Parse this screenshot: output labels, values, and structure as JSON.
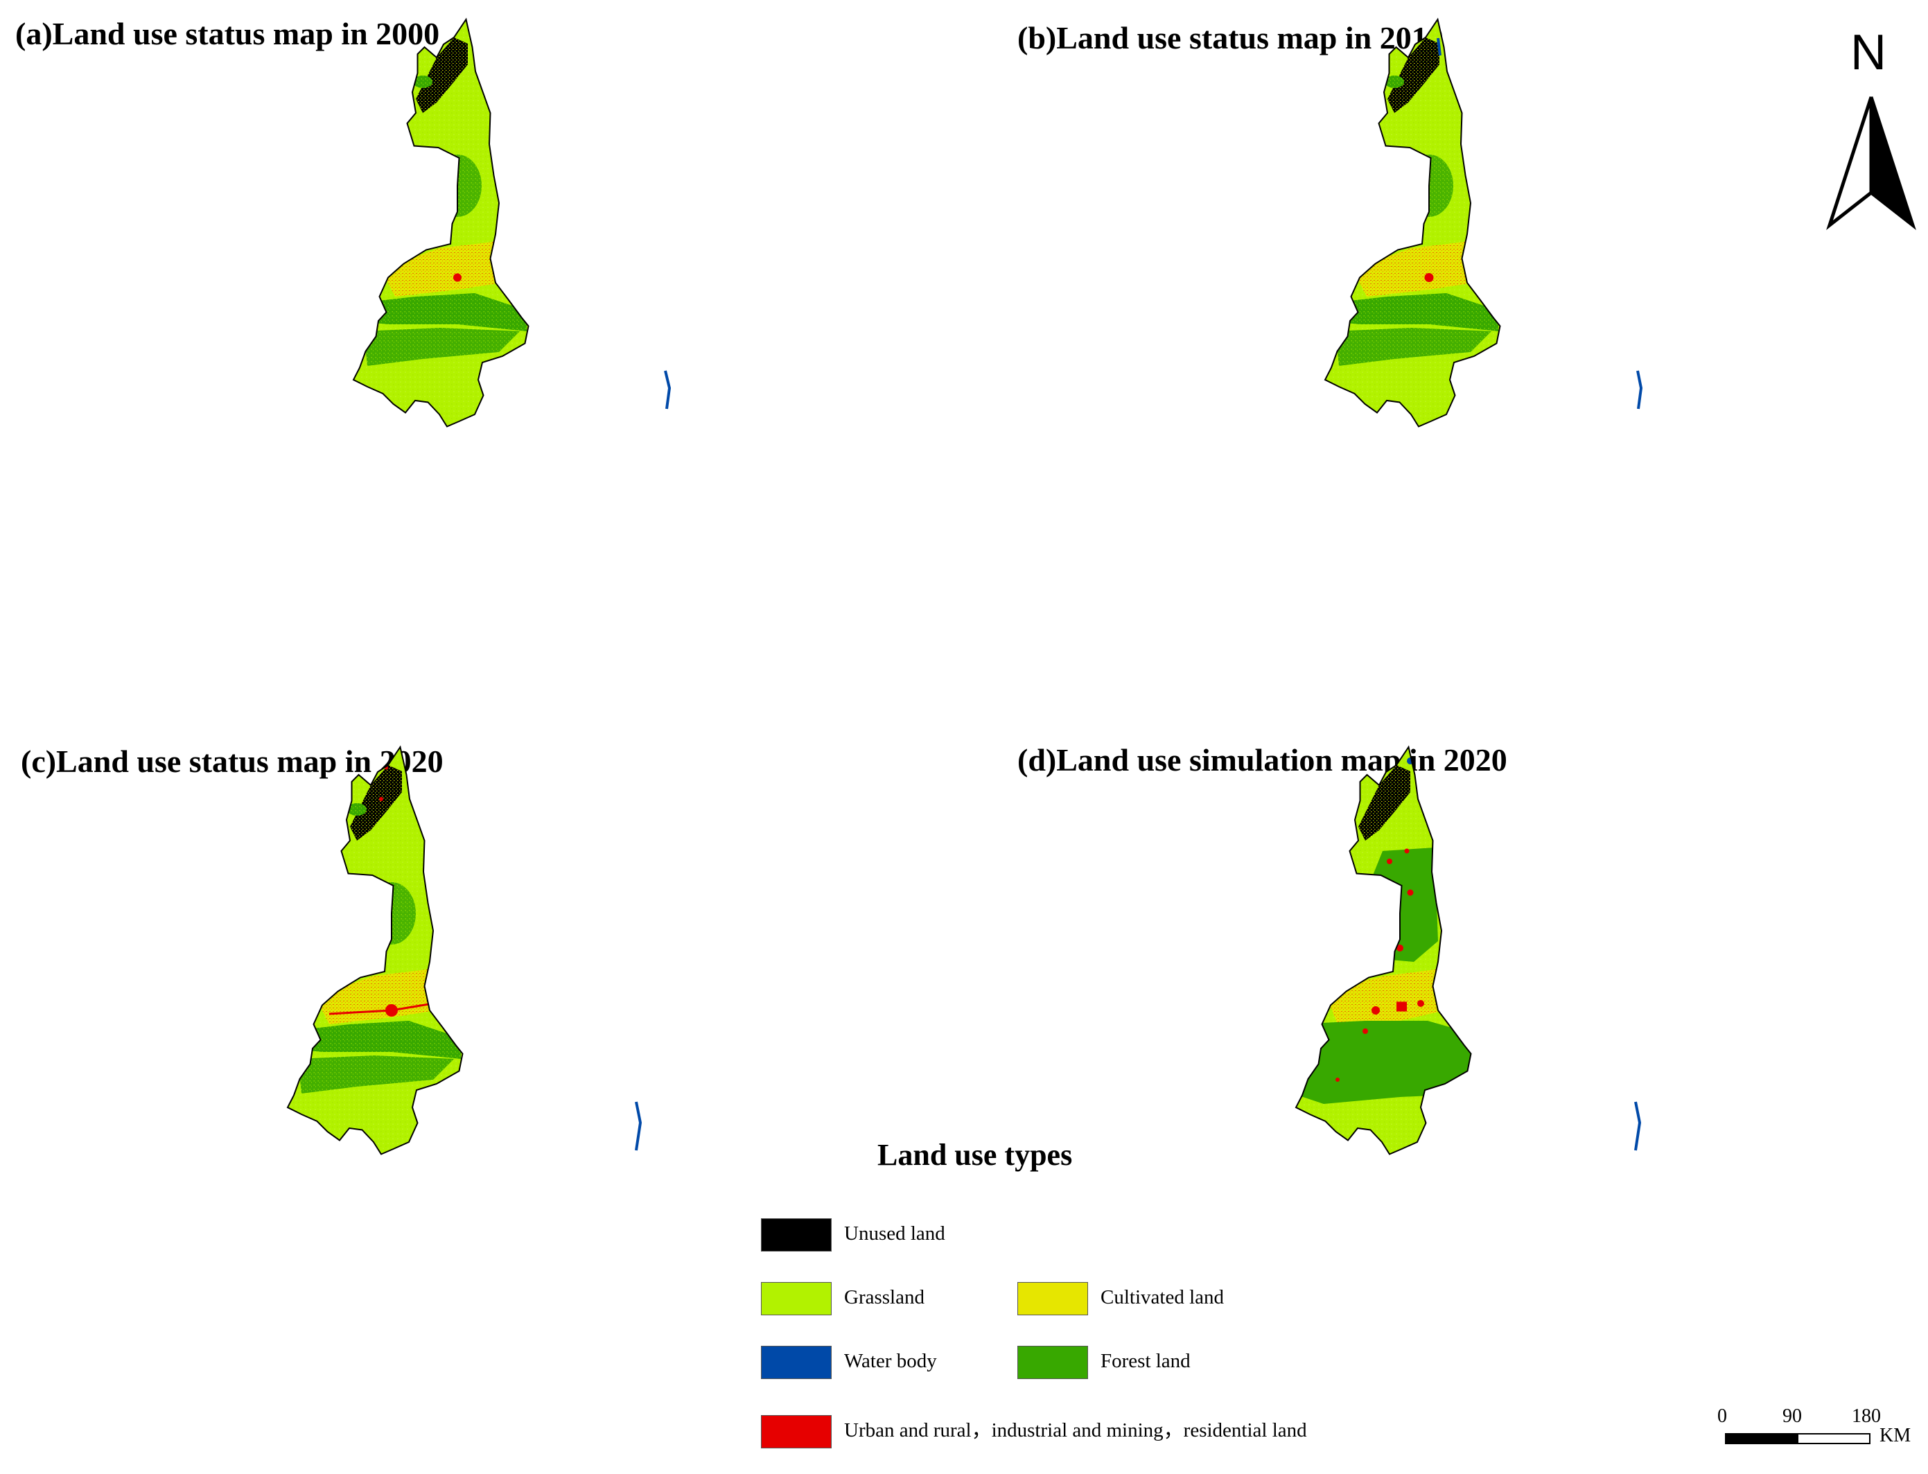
{
  "panels": {
    "a": {
      "title": "(a)Land use status map in 2000"
    },
    "b": {
      "title": "(b)Land use status map in 2010"
    },
    "c": {
      "title": "(c)Land use status map in 2020"
    },
    "d": {
      "title": "(d)Land use simulation map in 2020"
    }
  },
  "north_arrow": {
    "label": "N"
  },
  "legend": {
    "title": "Land use types",
    "items": [
      {
        "label": "Unused land",
        "color": "#000000"
      },
      {
        "label": "Grassland",
        "color": "#b2f200"
      },
      {
        "label": "Cultivated land",
        "color": "#e6e600"
      },
      {
        "label": "Water body",
        "color": "#0049a8"
      },
      {
        "label": "Forest land",
        "color": "#38a800"
      },
      {
        "label": "Urban and rural，industrial and mining，residential land",
        "color": "#e60000"
      }
    ]
  },
  "scale_bar": {
    "ticks": [
      "0",
      "90",
      "180"
    ],
    "unit": "KM"
  }
}
